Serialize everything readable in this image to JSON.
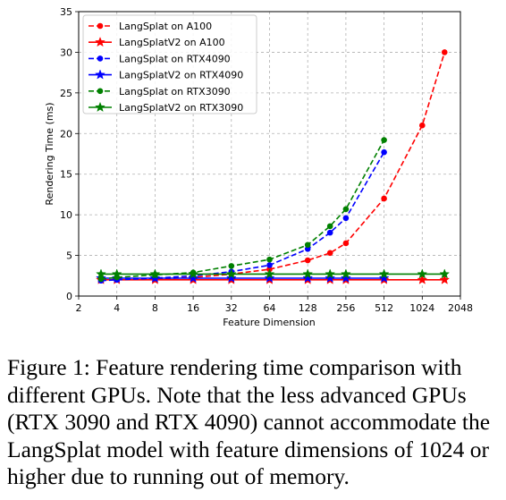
{
  "chart_data": {
    "type": "line",
    "xlabel": "Feature Dimension",
    "ylabel": "Rendering Time (ms)",
    "xscale": "log2",
    "xlim": [
      2,
      2048
    ],
    "ylim": [
      0,
      35
    ],
    "x_ticks": [
      2,
      4,
      8,
      16,
      32,
      64,
      128,
      256,
      512,
      1024,
      2048
    ],
    "x_tick_labels": [
      "2",
      "4",
      "8",
      "16",
      "32",
      "64",
      "128",
      "256",
      "512",
      "1024",
      "2048"
    ],
    "y_ticks": [
      0,
      5,
      10,
      15,
      20,
      25,
      30,
      35
    ],
    "y_tick_labels": [
      "0",
      "5",
      "10",
      "15",
      "20",
      "25",
      "30",
      "35"
    ],
    "grid": true,
    "legend_position": "top-left",
    "series": [
      {
        "name": "LangSplat on A100",
        "color": "#ff0000",
        "linestyle": "dashed",
        "marker": "circle",
        "x": [
          3,
          4,
          8,
          16,
          32,
          64,
          128,
          192,
          256,
          512,
          1024,
          1536
        ],
        "y": [
          2.0,
          2.0,
          2.1,
          2.3,
          2.7,
          3.3,
          4.4,
          5.3,
          6.5,
          12.0,
          21.0,
          30.0
        ]
      },
      {
        "name": "LangSplatV2 on A100",
        "color": "#ff0000",
        "linestyle": "solid",
        "marker": "star",
        "x": [
          3,
          4,
          8,
          16,
          32,
          64,
          128,
          192,
          256,
          512,
          1024,
          1536
        ],
        "y": [
          2.0,
          2.0,
          2.0,
          2.0,
          2.0,
          2.0,
          2.0,
          2.0,
          2.0,
          2.0,
          2.0,
          2.0
        ]
      },
      {
        "name": "LangSplat on RTX4090",
        "color": "#0000ff",
        "linestyle": "dashed",
        "marker": "circle",
        "x": [
          3,
          4,
          8,
          16,
          32,
          64,
          128,
          192,
          256,
          512
        ],
        "y": [
          1.9,
          2.0,
          2.2,
          2.5,
          3.0,
          3.8,
          5.8,
          7.8,
          9.6,
          17.7
        ]
      },
      {
        "name": "LangSplatV2 on RTX4090",
        "color": "#0000ff",
        "linestyle": "solid",
        "marker": "star",
        "x": [
          3,
          4,
          8,
          16,
          32,
          64,
          128,
          192,
          256,
          512
        ],
        "y": [
          2.2,
          2.2,
          2.2,
          2.2,
          2.2,
          2.2,
          2.2,
          2.2,
          2.2,
          2.2
        ]
      },
      {
        "name": "LangSplat on RTX3090",
        "color": "#008000",
        "linestyle": "dashed",
        "marker": "circle",
        "x": [
          3,
          4,
          8,
          16,
          32,
          64,
          128,
          192,
          256,
          512
        ],
        "y": [
          2.1,
          2.3,
          2.6,
          2.9,
          3.7,
          4.5,
          6.3,
          8.6,
          10.7,
          19.2
        ]
      },
      {
        "name": "LangSplatV2 on RTX3090",
        "color": "#008000",
        "linestyle": "solid",
        "marker": "star",
        "x": [
          3,
          4,
          8,
          16,
          32,
          64,
          128,
          192,
          256,
          512,
          1024,
          1536
        ],
        "y": [
          2.7,
          2.7,
          2.7,
          2.7,
          2.7,
          2.7,
          2.7,
          2.7,
          2.7,
          2.7,
          2.7,
          2.7
        ]
      }
    ]
  },
  "caption": "Figure 1: Feature rendering time comparison with different GPUs. Note that the less advanced GPUs (RTX 3090 and RTX 4090) cannot accommodate the LangSplat model with feature dimensions of 1024 or higher due to running out of memory."
}
